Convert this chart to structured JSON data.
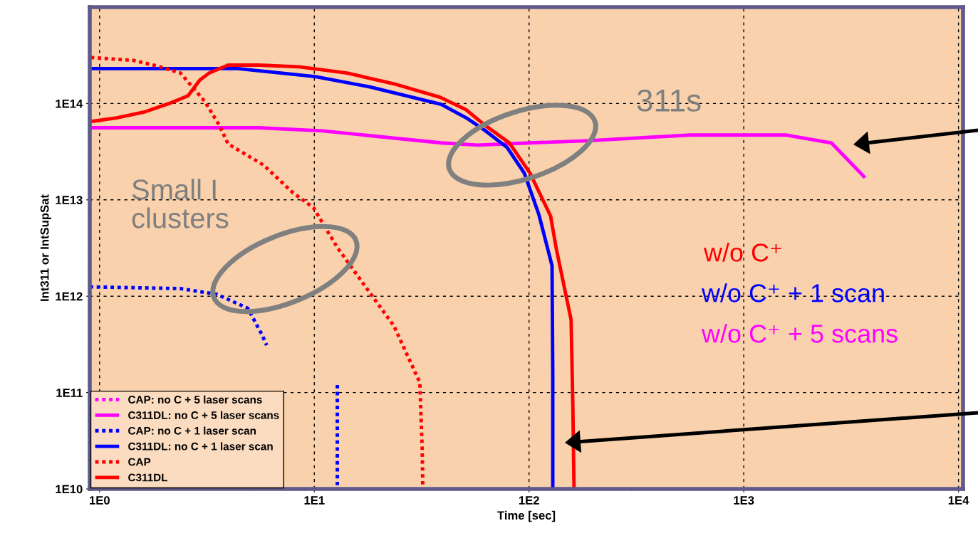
{
  "chart_data": {
    "type": "line",
    "xlabel": "Time [sec]",
    "ylabel": "Int311 or IntSupSat",
    "log": "xy",
    "xlim": [
      0.9,
      10500
    ],
    "ylim": [
      10000000000.0,
      1000000000000000.0
    ],
    "xticks": [
      {
        "value": 1,
        "label": "1E0"
      },
      {
        "value": 10,
        "label": "1E1"
      },
      {
        "value": 100,
        "label": "1E2"
      },
      {
        "value": 1000,
        "label": "1E3"
      },
      {
        "value": 10000,
        "label": "1E4"
      }
    ],
    "yticks": [
      {
        "value": 10000000000.0,
        "label": "1E10"
      },
      {
        "value": 100000000000.0,
        "label": "1E11"
      },
      {
        "value": 1000000000000.0,
        "label": "1E12"
      },
      {
        "value": 10000000000000.0,
        "label": "1E13"
      },
      {
        "value": 100000000000000.0,
        "label": "1E14"
      }
    ],
    "grid": true,
    "legend": "bottom left",
    "marker": "none",
    "series": [
      {
        "name": "CAP: no C + 5 laser scans",
        "color": "#ff00ff",
        "line_style": "dotted"
      },
      {
        "name": "C311DL: no C + 5 laser scans",
        "color": "#ff00ff",
        "line_style": "solid",
        "x": [
          0.9,
          5.5,
          10.9,
          39,
          57.6,
          101,
          184,
          563,
          1580,
          2560,
          3670
        ],
        "values": [
          56000000000000.0,
          56000000000000.0,
          52000000000000.0,
          39000000000000.0,
          37000000000000.0,
          39000000000000.0,
          41000000000000.0,
          47000000000000.0,
          47000000000000.0,
          39000000000000.0,
          17000000000000.0
        ]
      },
      {
        "name": "CAP: no C + 1 laser scan",
        "color": "#0000ff",
        "line_style": "dotted",
        "x": [
          0.9,
          2.38,
          3.5,
          4.9,
          5.7,
          6.0,
          9,
          12.8,
          12.8
        ],
        "values": [
          1250000000000.0,
          1200000000000.0,
          1050000000000.0,
          750000000000.0,
          400000000000.0,
          310000000000.0,
          null,
          120000000000.0,
          10000000000.0
        ]
      },
      {
        "name": "C311DL: no C + 1 laser scan",
        "color": "#0000ff",
        "line_style": "solid",
        "x": [
          0.9,
          4.4,
          10.1,
          18.3,
          39,
          51,
          62,
          79,
          95,
          111,
          128,
          129,
          129
        ],
        "values": [
          230000000000000.0,
          230000000000000.0,
          190000000000000.0,
          148000000000000.0,
          98000000000000.0,
          71000000000000.0,
          53000000000000.0,
          35000000000000.0,
          19000000000000.0,
          7100000000000.0,
          2070000000000.0,
          145000000000.0,
          10000000000.0
        ]
      },
      {
        "name": "CAP",
        "color": "#ff0000",
        "line_style": "dotted",
        "x": [
          0.91,
          1.44,
          1.85,
          2.38,
          3.09,
          3.6,
          3.97,
          5.8,
          7.9,
          9.9,
          12.8,
          16,
          23.5,
          31,
          31.8,
          32
        ],
        "values": [
          300000000000000.0,
          280000000000000.0,
          245000000000000.0,
          207000000000000.0,
          105000000000000.0,
          60000000000000.0,
          38000000000000.0,
          23000000000000.0,
          12000000000000.0,
          8300000000000.0,
          3200000000000.0,
          1600000000000.0,
          490000000000.0,
          127000000000.0,
          26000000000.0,
          10000000000.0
        ]
      },
      {
        "name": "C311DL",
        "color": "#ff0000",
        "line_style": "solid",
        "x": [
          0.91,
          1.2,
          1.63,
          2.11,
          2.58,
          2.93,
          3.24,
          3.97,
          5.5,
          8.5,
          14.2,
          23.5,
          38.5,
          51,
          62,
          81,
          101,
          126,
          134,
          157,
          160,
          162
        ],
        "values": [
          65000000000000.0,
          71000000000000.0,
          82000000000000.0,
          100000000000000.0,
          120000000000000.0,
          175000000000000.0,
          207000000000000.0,
          250000000000000.0,
          250000000000000.0,
          240000000000000.0,
          207000000000000.0,
          160000000000000.0,
          116000000000000.0,
          86000000000000.0,
          60000000000000.0,
          39000000000000.0,
          19000000000000.0,
          6800000000000.0,
          3100000000000.0,
          570000000000.0,
          71000000000.0,
          10000000000.0
        ]
      }
    ],
    "annotations": [
      "311s",
      "Small I\nclusters",
      "w/o C⁺",
      "w/o C⁺ + 1 scan",
      "w/o C⁺ + 5 scans"
    ]
  }
}
